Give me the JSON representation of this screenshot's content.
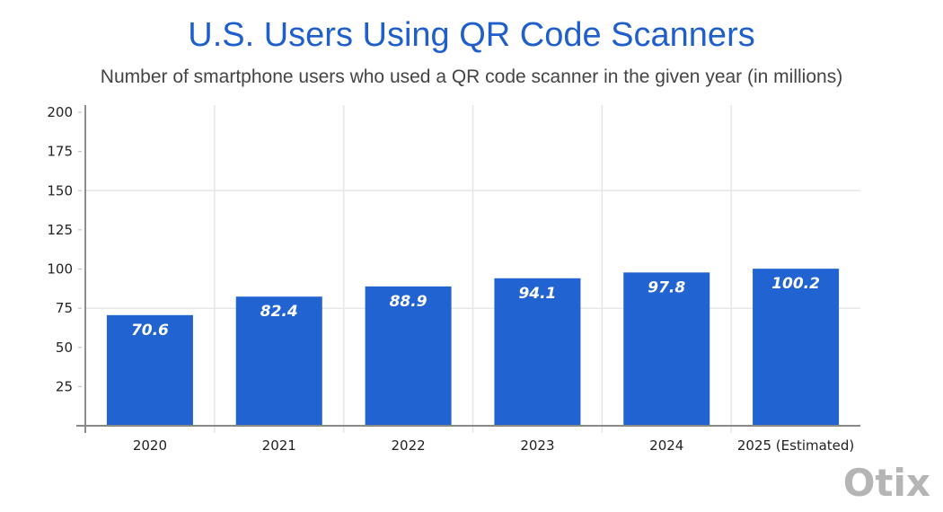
{
  "chart_data": {
    "type": "bar",
    "title": "U.S. Users Using QR Code Scanners",
    "subtitle": "Number of smartphone users who used a QR code scanner in the given year (in millions)",
    "xlabel": "",
    "ylabel": "",
    "categories": [
      "2020",
      "2021",
      "2022",
      "2023",
      "2024",
      "2025 (Estimated)"
    ],
    "values": [
      70.6,
      82.4,
      88.9,
      94.1,
      97.8,
      100.2
    ],
    "data_labels": [
      "70.6",
      "82.4",
      "88.9",
      "94.1",
      "97.8",
      "100.2"
    ],
    "ylim": [
      0,
      200
    ],
    "yticks": [
      25,
      50,
      75,
      100,
      125,
      150,
      175,
      200
    ],
    "grid": true,
    "legend": "none",
    "bar_color": "#2163d1"
  },
  "watermark": "Otix"
}
